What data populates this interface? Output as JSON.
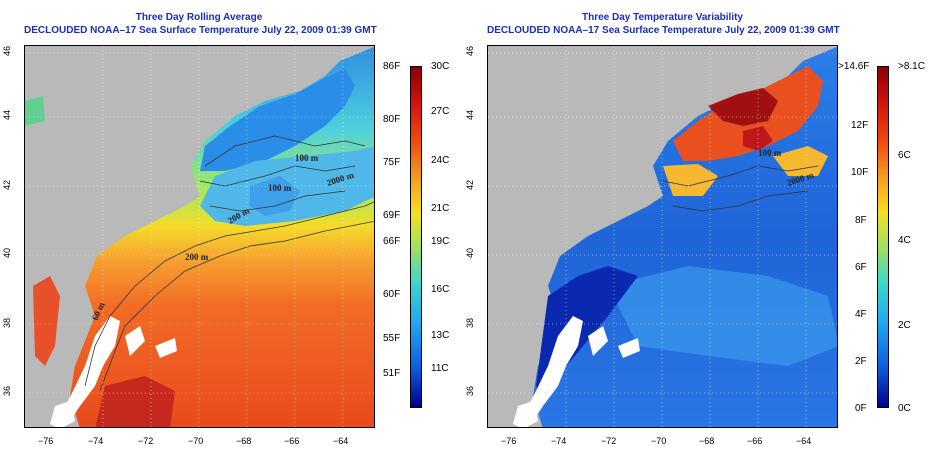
{
  "left_panel": {
    "title": "Three Day Rolling Average",
    "subtitle": "DECLOUDED NOAA–17 Sea Surface Temperature July 22, 2009 01:39 GMT",
    "contour_labels": [
      "100 m",
      "2000 m",
      "100 m",
      "200 m",
      "200 m",
      "60 m"
    ],
    "colorbar": {
      "fahrenheit": [
        "86F",
        "80F",
        "75F",
        "69F",
        "66F",
        "60F",
        "55F",
        "51F"
      ],
      "celsius": [
        "30C",
        "27C",
        "24C",
        "21C",
        "19C",
        "16C",
        "13C",
        "11C"
      ]
    }
  },
  "right_panel": {
    "title": "Three Day Temperature Variability",
    "subtitle": "DECLOUDED NOAA–17 Sea Surface Temperature July 22, 2009 01:39 GMT",
    "contour_labels": [
      "2000 m",
      "100 m"
    ],
    "colorbar": {
      "fahrenheit": [
        ">14.6F",
        "12F",
        "10F",
        "8F",
        "6F",
        "4F",
        "2F",
        "0F"
      ],
      "celsius": [
        ">8.1C",
        "6C",
        "4C",
        "2C",
        "0C"
      ]
    }
  },
  "axes": {
    "x_ticks": [
      "−76",
      "−74",
      "−72",
      "−70",
      "−68",
      "−66",
      "−64"
    ],
    "y_ticks": [
      "46",
      "44",
      "42",
      "40",
      "38",
      "36"
    ]
  },
  "colors": {
    "title": "#1a2eb8",
    "land": "#b9b9b9",
    "cloud": "#ffffff",
    "contour": "#333333"
  }
}
